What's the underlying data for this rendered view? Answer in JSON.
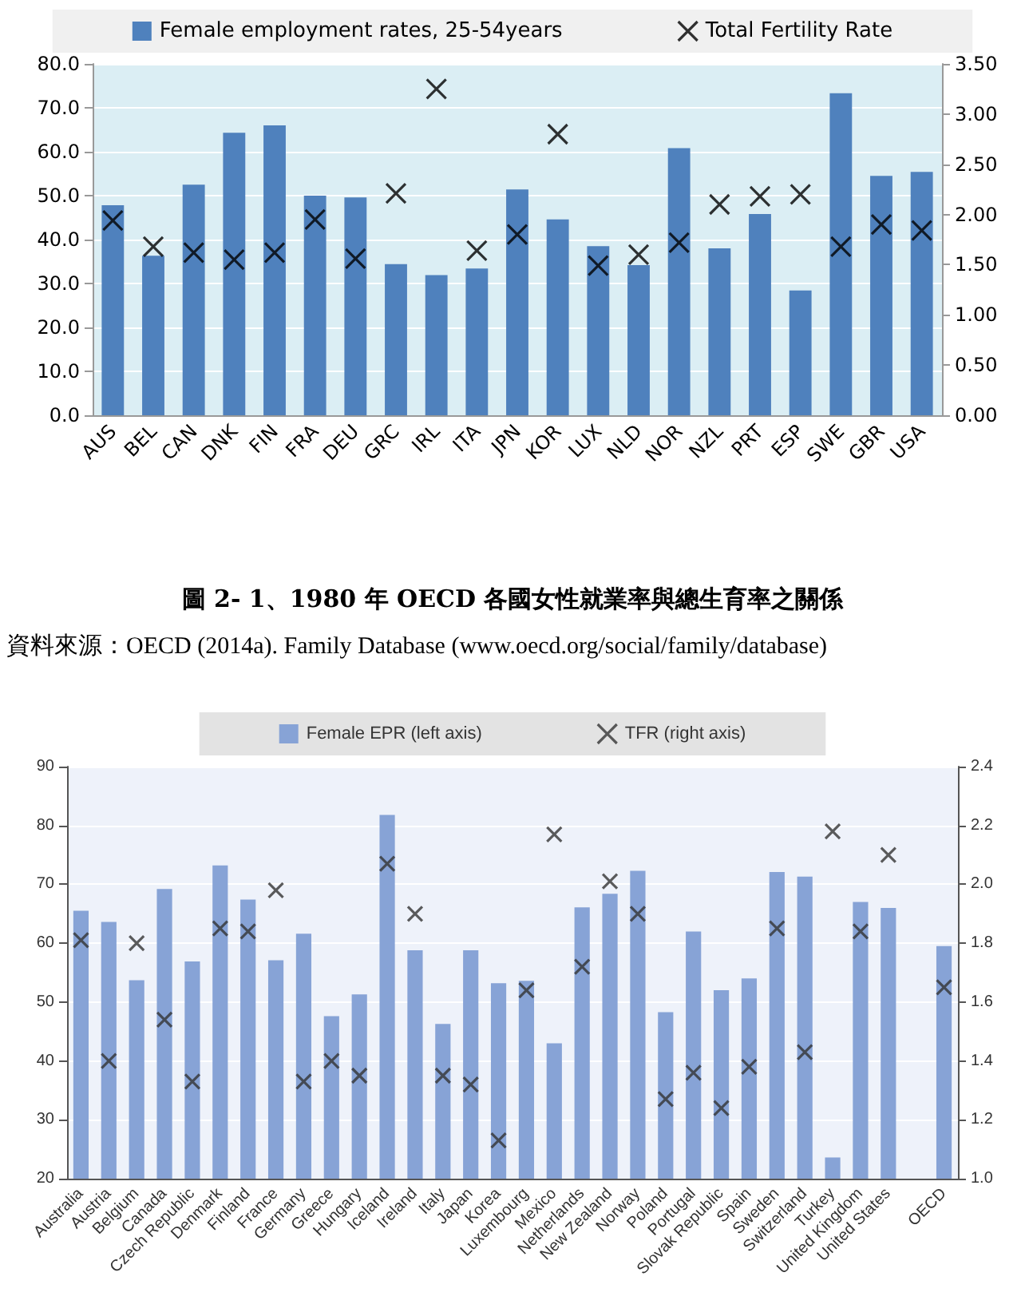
{
  "chart_data": [
    {
      "type": "bar",
      "annotations": [
        "圖 2- 1、1980 年 OECD 各國女性就業率與總生育率之關係",
        "資料來源：OECD (2014a). Family Database (www.oecd.org/social/family/database)"
      ],
      "categories": [
        "AUS",
        "BEL",
        "CAN",
        "DNK",
        "FIN",
        "FRA",
        "DEU",
        "GRC",
        "IRL",
        "ITA",
        "JPN",
        "KOR",
        "LUX",
        "NLD",
        "NOR",
        "NZL",
        "PRT",
        "ESP",
        "SWE",
        "GBR",
        "USA"
      ],
      "series": [
        {
          "name": "Female employment rates, 25-54years",
          "color": "#4f81bd",
          "values": [
            47.8,
            36.3,
            52.5,
            64.3,
            66.0,
            50.0,
            49.6,
            34.4,
            31.9,
            33.4,
            51.4,
            44.6,
            38.5,
            34.2,
            60.8,
            38.0,
            45.8,
            28.4,
            73.3,
            54.5,
            55.4
          ]
        },
        {
          "name": "Total Fertility Rate",
          "type": "scatter",
          "axis": "y2",
          "color": "#000000",
          "values": [
            1.94,
            1.68,
            1.62,
            1.55,
            1.62,
            1.95,
            1.56,
            2.21,
            3.25,
            1.64,
            1.8,
            2.8,
            1.49,
            1.6,
            1.72,
            2.1,
            2.18,
            2.2,
            1.68,
            1.9,
            1.84
          ]
        }
      ],
      "marker": "cross",
      "grid": "y",
      "legend": "top",
      "ylim": [
        0,
        80
      ],
      "yticks": [
        {
          "value": 0,
          "label": "0.0"
        },
        {
          "value": 10,
          "label": "10.0"
        },
        {
          "value": 20,
          "label": "20.0"
        },
        {
          "value": 30,
          "label": "30.0"
        },
        {
          "value": 40,
          "label": "40.0"
        },
        {
          "value": 50,
          "label": "50.0"
        },
        {
          "value": 60,
          "label": "60.0"
        },
        {
          "value": 70,
          "label": "70.0"
        },
        {
          "value": 80,
          "label": "80.0"
        }
      ],
      "y2lim": [
        0,
        3.5
      ],
      "y2ticks": [
        {
          "value": 0,
          "label": "0.00"
        },
        {
          "value": 0.5,
          "label": "0.50"
        },
        {
          "value": 1,
          "label": "1.00"
        },
        {
          "value": 1.5,
          "label": "1.50"
        },
        {
          "value": 2,
          "label": "2.00"
        },
        {
          "value": 2.5,
          "label": "2.50"
        },
        {
          "value": 3,
          "label": "3.00"
        },
        {
          "value": 3.5,
          "label": "3.50"
        }
      ]
    },
    {
      "type": "bar",
      "categories": [
        "Australia",
        "Austria",
        "Belgium",
        "Canada",
        "Czech Republic",
        "Denmark",
        "Finland",
        "France",
        "Germany",
        "Greece",
        "Hungary",
        "Iceland",
        "Ireland",
        "Italy",
        "Japan",
        "Korea",
        "Luxembourg",
        "Mexico",
        "Netherlands",
        "New Zealand",
        "Norway",
        "Poland",
        "Portugal",
        "Slovak Republic",
        "Spain",
        "Sweden",
        "Switzerland",
        "Turkey",
        "United Kingdom",
        "United States",
        null,
        "OECD"
      ],
      "series": [
        {
          "name": "Female EPR (left axis)",
          "color": "#87a3d6",
          "values": [
            65.5,
            63.6,
            53.7,
            69.2,
            56.9,
            73.2,
            67.4,
            57.1,
            61.6,
            47.6,
            51.3,
            81.8,
            58.8,
            46.3,
            58.8,
            53.2,
            53.6,
            43.0,
            66.1,
            68.4,
            72.3,
            48.3,
            62.0,
            52.0,
            54.0,
            72.1,
            71.3,
            23.6,
            67.0,
            66.0,
            null,
            59.5
          ]
        },
        {
          "name": "TFR (right axis)",
          "type": "scatter",
          "axis": "y2",
          "color": "#333333",
          "values": [
            1.81,
            1.4,
            1.8,
            1.54,
            1.33,
            1.85,
            1.84,
            1.98,
            1.33,
            1.4,
            1.35,
            2.07,
            1.9,
            1.35,
            1.32,
            1.13,
            1.64,
            2.17,
            1.72,
            2.01,
            1.9,
            1.27,
            1.36,
            1.24,
            1.38,
            1.85,
            1.43,
            2.18,
            1.84,
            2.1,
            null,
            1.65
          ]
        }
      ],
      "marker": "cross",
      "grid": "y",
      "legend": "top",
      "ylim": [
        20,
        90
      ],
      "yticks": [
        20,
        30,
        40,
        50,
        60,
        70,
        80,
        90
      ],
      "y2lim": [
        1.0,
        2.4
      ],
      "y2ticks": [
        {
          "value": 1.0,
          "label": "1.0"
        },
        1.2,
        1.4,
        1.6,
        1.8,
        {
          "value": 2.0,
          "label": "2.0"
        },
        2.2,
        2.4
      ]
    }
  ]
}
